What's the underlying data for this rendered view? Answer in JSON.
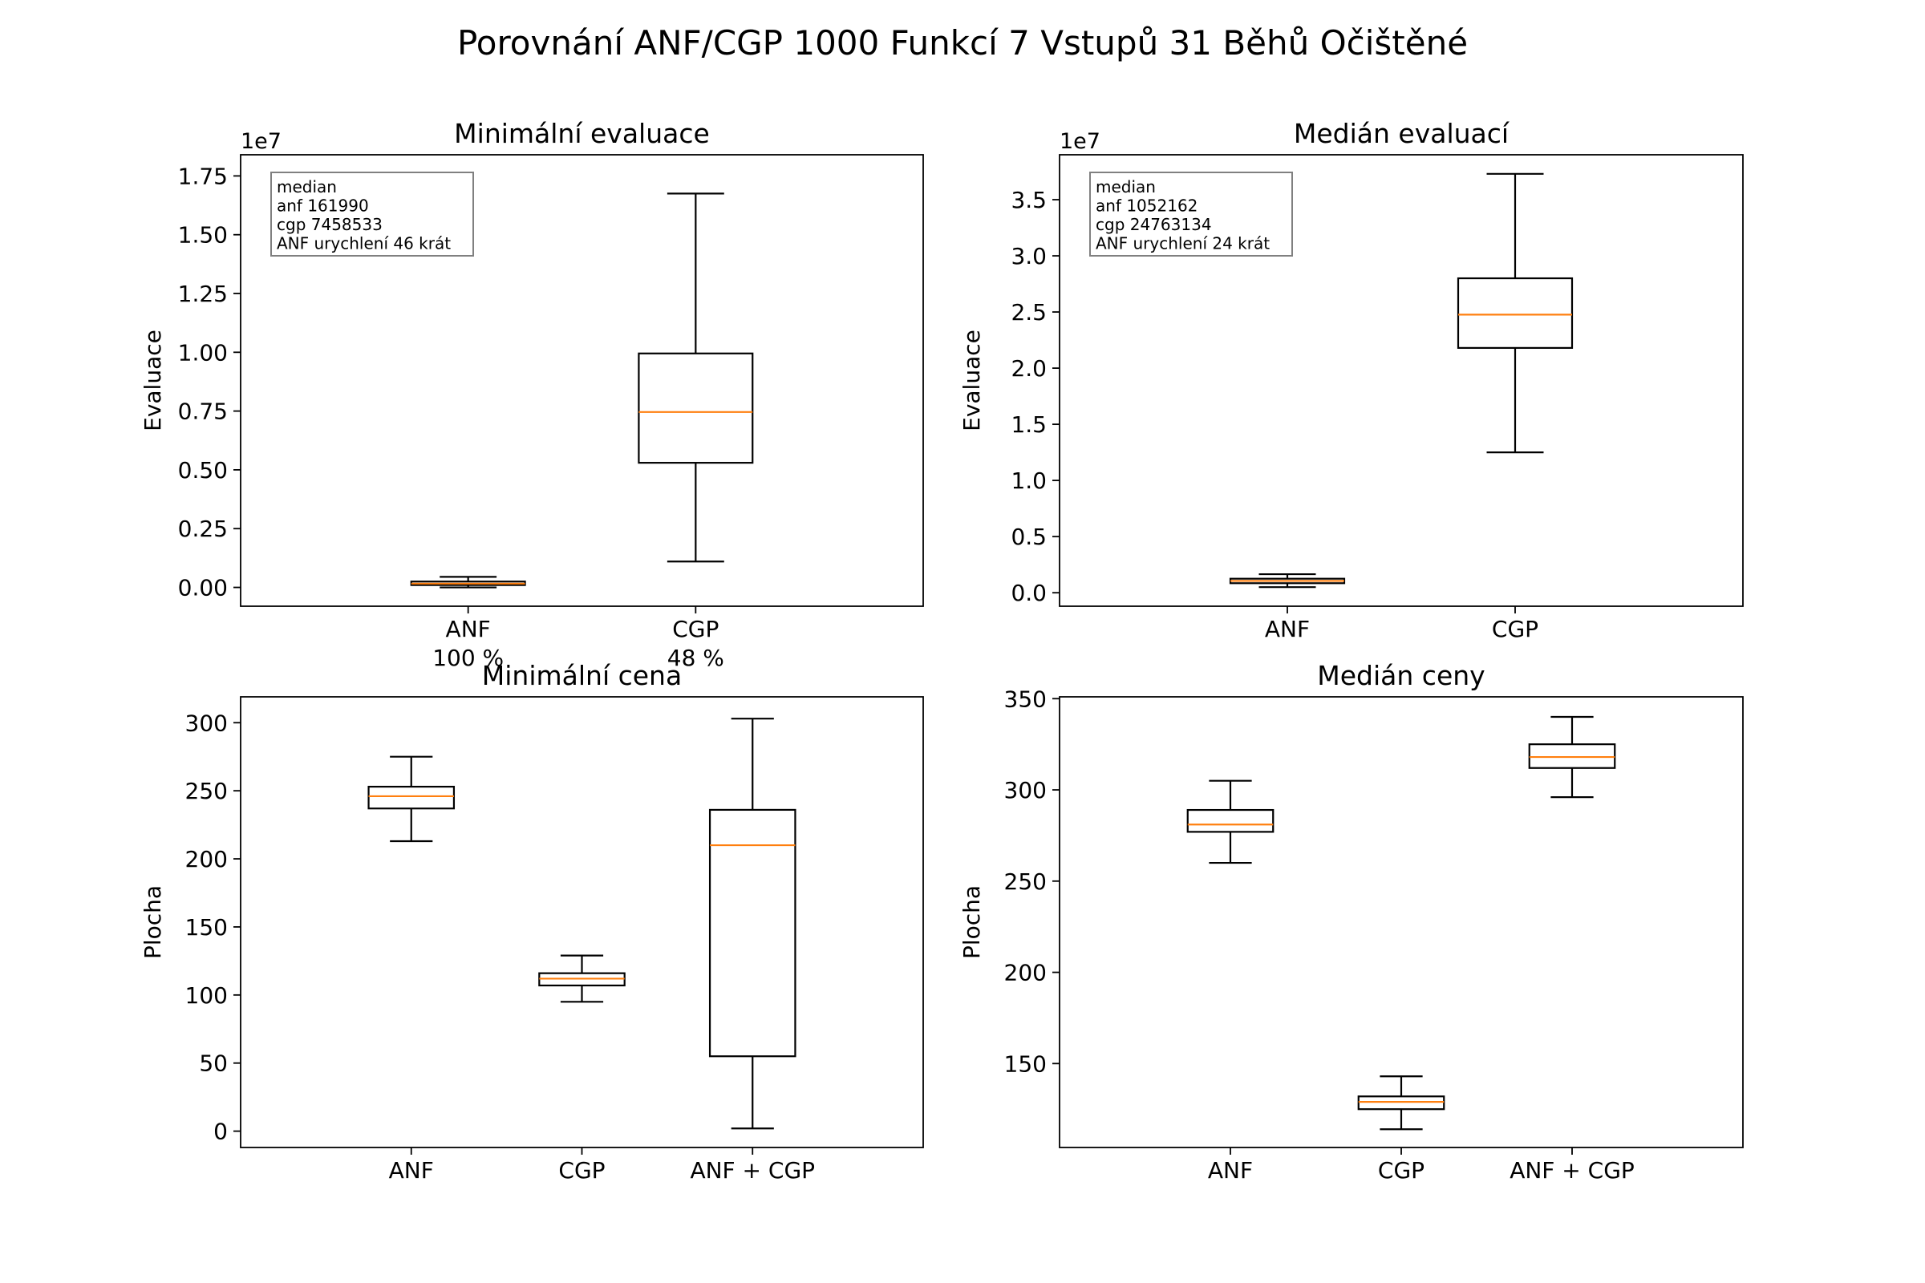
{
  "figure_title": "Porovnání ANF/CGP 1000 Funkcí 7 Vstupů 31 Běhů Očištěné",
  "chart_data": [
    {
      "type": "box",
      "title": "Minimální evaluace",
      "ylabel": "Evaluace",
      "multiplier": "1e7",
      "categories": [
        "ANF",
        "CGP"
      ],
      "category_sublabels": [
        "100 %",
        "48 %"
      ],
      "ylim": [
        -0.08,
        1.84
      ],
      "yticks": [
        0,
        0.25,
        0.5,
        0.75,
        1.0,
        1.25,
        1.5,
        1.75
      ],
      "yticklabels": [
        "0.00",
        "0.25",
        "0.50",
        "0.75",
        "1.00",
        "1.25",
        "1.50",
        "1.75"
      ],
      "series": [
        {
          "name": "ANF",
          "whislo": 0.0,
          "q1": 0.01,
          "med": 0.0162,
          "q3": 0.025,
          "whishi": 0.045
        },
        {
          "name": "CGP",
          "whislo": 0.11,
          "q1": 0.53,
          "med": 0.7459,
          "q3": 0.995,
          "whishi": 1.675
        }
      ],
      "annotation": [
        "median",
        "anf 161990",
        "cgp 7458533",
        "ANF urychlení 46 krát"
      ],
      "grid": false
    },
    {
      "type": "box",
      "title": "Medián evaluací",
      "ylabel": "Evaluace",
      "multiplier": "1e7",
      "categories": [
        "ANF",
        "CGP"
      ],
      "category_sublabels": [],
      "ylim": [
        -0.12,
        3.9
      ],
      "yticks": [
        0,
        0.5,
        1.0,
        1.5,
        2.0,
        2.5,
        3.0,
        3.5
      ],
      "yticklabels": [
        "0.0",
        "0.5",
        "1.0",
        "1.5",
        "2.0",
        "2.5",
        "3.0",
        "3.5"
      ],
      "series": [
        {
          "name": "ANF",
          "whislo": 0.05,
          "q1": 0.085,
          "med": 0.1052,
          "q3": 0.125,
          "whishi": 0.165
        },
        {
          "name": "CGP",
          "whislo": 1.25,
          "q1": 2.18,
          "med": 2.4763,
          "q3": 2.8,
          "whishi": 3.73
        }
      ],
      "annotation": [
        "median",
        "anf 1052162",
        "cgp 24763134",
        "ANF urychlení 24 krát"
      ],
      "grid": false
    },
    {
      "type": "box",
      "title": "Minimální cena",
      "ylabel": "Plocha",
      "multiplier": "",
      "categories": [
        "ANF",
        "CGP",
        "ANF + CGP"
      ],
      "category_sublabels": [],
      "ylim": [
        -12,
        319
      ],
      "yticks": [
        0,
        50,
        100,
        150,
        200,
        250,
        300
      ],
      "yticklabels": [
        "0",
        "50",
        "100",
        "150",
        "200",
        "250",
        "300"
      ],
      "series": [
        {
          "name": "ANF",
          "whislo": 213,
          "q1": 237,
          "med": 246,
          "q3": 253,
          "whishi": 275
        },
        {
          "name": "CGP",
          "whislo": 95,
          "q1": 107,
          "med": 112,
          "q3": 116,
          "whishi": 129
        },
        {
          "name": "ANF + CGP",
          "whislo": 2,
          "q1": 55,
          "med": 210,
          "q3": 236,
          "whishi": 303
        }
      ],
      "annotation": [],
      "grid": false
    },
    {
      "type": "box",
      "title": "Medián ceny",
      "ylabel": "Plocha",
      "multiplier": "",
      "categories": [
        "ANF",
        "CGP",
        "ANF + CGP"
      ],
      "category_sublabels": [],
      "ylim": [
        104,
        351
      ],
      "yticks": [
        150,
        200,
        250,
        300,
        350
      ],
      "yticklabels": [
        "150",
        "200",
        "250",
        "300",
        "350"
      ],
      "series": [
        {
          "name": "ANF",
          "whislo": 260,
          "q1": 277,
          "med": 281,
          "q3": 289,
          "whishi": 305
        },
        {
          "name": "CGP",
          "whislo": 114,
          "q1": 125,
          "med": 129,
          "q3": 132,
          "whishi": 143
        },
        {
          "name": "ANF + CGP",
          "whislo": 296,
          "q1": 312,
          "med": 318,
          "q3": 325,
          "whishi": 340
        }
      ],
      "annotation": [],
      "grid": false
    }
  ]
}
